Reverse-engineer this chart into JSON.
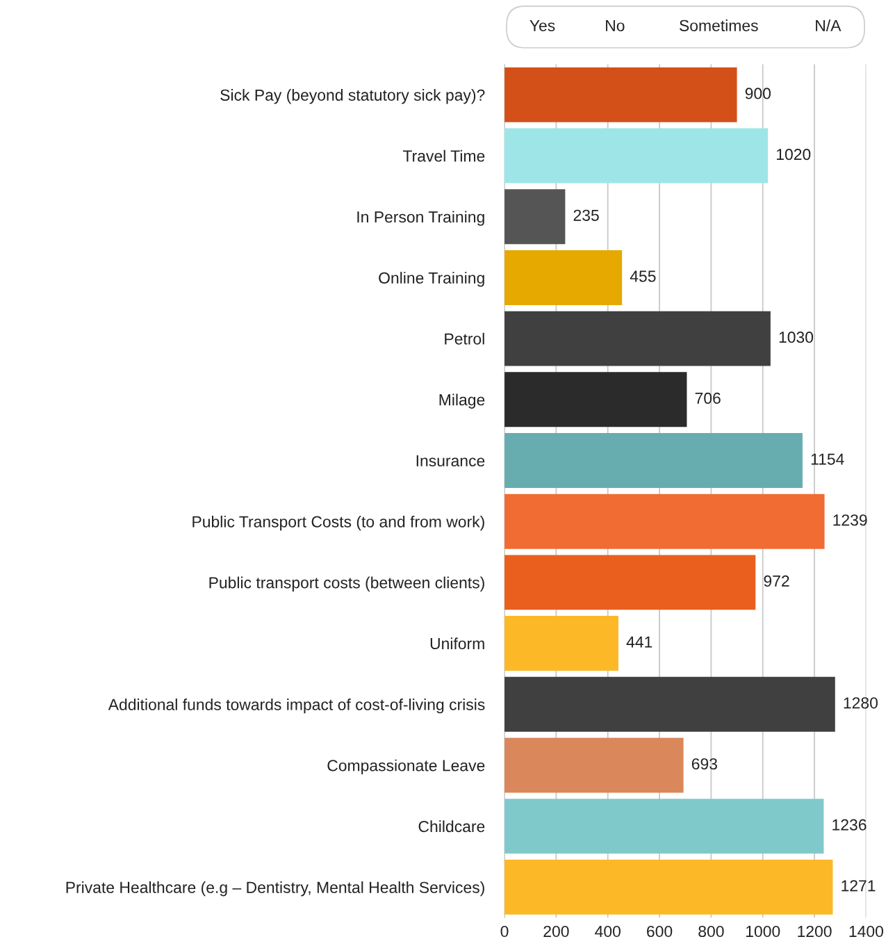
{
  "chart_data": {
    "type": "bar",
    "orientation": "horizontal",
    "categories": [
      "Sick Pay (beyond statutory sick pay)?",
      "Travel Time",
      "In Person Training",
      "Online Training",
      "Petrol",
      "Milage",
      "Insurance",
      "Public Transport Costs (to and from work)",
      "Public transport costs (between clients)",
      "Uniform",
      "Additional funds towards impact of cost-of-living crisis",
      "Compassionate Leave",
      "Childcare",
      "Private Healthcare (e.g – Dentistry, Mental Health Services)"
    ],
    "values": [
      900,
      1020,
      235,
      455,
      1030,
      706,
      1154,
      1239,
      972,
      441,
      1280,
      693,
      1236,
      1271
    ],
    "colors": [
      "#d35019",
      "#9ee5e8",
      "#555555",
      "#e5a900",
      "#404040",
      "#2b2b2b",
      "#67adb0",
      "#f06c32",
      "#ea5f1e",
      "#fcb827",
      "#404040",
      "#d9875b",
      "#80c9cb",
      "#fcb827"
    ],
    "xlim": [
      0,
      1400
    ],
    "xticks": [
      0,
      200,
      400,
      600,
      800,
      1000,
      1200,
      1400
    ],
    "grid": "x",
    "data_labels": true,
    "legend": false,
    "annotations": [
      "Yes",
      "No",
      "Sometimes",
      "N/A"
    ]
  }
}
